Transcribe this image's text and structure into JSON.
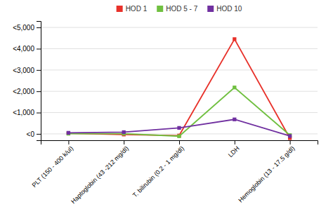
{
  "chart_data": {
    "type": "line",
    "categories": [
      "PLT (150 - 400 k/ul)",
      "Haptoglobin (43 -212 mg/dl)",
      "T. bilirubin (0.2 - 1 mg/dl)",
      "LDH",
      "Hemoglobin (13 - 17.5 g/dl)"
    ],
    "series": [
      {
        "name": "HOD 1",
        "color": "#e8312a",
        "values": [
          30,
          -30,
          -80,
          4450,
          -200
        ]
      },
      {
        "name": "HOD 5 - 7",
        "color": "#70c040",
        "values": [
          10,
          10,
          -110,
          2180,
          -60
        ]
      },
      {
        "name": "HOD 10",
        "color": "#7030a0",
        "values": [
          50,
          80,
          280,
          680,
          -100
        ]
      }
    ],
    "ylim": [
      -300,
      5300
    ],
    "yticks": [
      {
        "value": 0,
        "label": "<0"
      },
      {
        "value": 1000,
        "label": "<1,000"
      },
      {
        "value": 2000,
        "label": "<2,000"
      },
      {
        "value": 3000,
        "label": "<3,000"
      },
      {
        "value": 4000,
        "label": "<4,000"
      },
      {
        "value": 5000,
        "label": "<5,000"
      }
    ],
    "grid": true,
    "legend": "top",
    "marker": "square"
  }
}
